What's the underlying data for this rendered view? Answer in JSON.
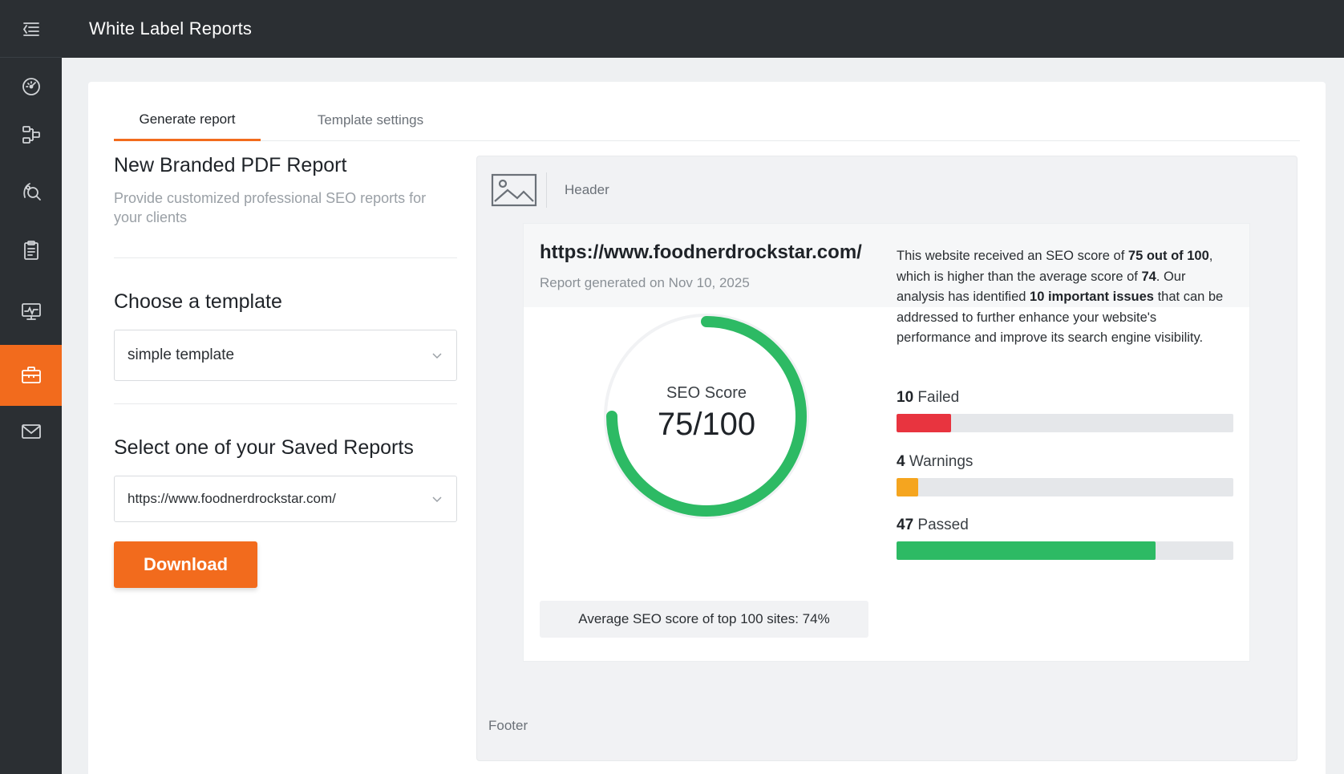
{
  "topbar": {
    "title": "White Label Reports"
  },
  "colors": {
    "accent": "#f26b1d",
    "sidebar_bg": "#2b2f33",
    "failed": "#e8343f",
    "warning": "#f5a51f",
    "passed": "#2dba64"
  },
  "sidebar": {
    "items": [
      {
        "icon": "menu-icon"
      },
      {
        "icon": "dashboard-gauge-icon"
      },
      {
        "icon": "sitemap-icon"
      },
      {
        "icon": "keyword-research-icon"
      },
      {
        "icon": "clipboard-icon"
      },
      {
        "icon": "monitor-icon"
      },
      {
        "icon": "briefcase-icon",
        "active": true
      },
      {
        "icon": "envelope-icon"
      }
    ]
  },
  "tabs": [
    {
      "label": "Generate report",
      "active": true
    },
    {
      "label": "Template settings",
      "active": false
    }
  ],
  "left": {
    "title": "New Branded PDF Report",
    "subtitle": "Provide customized professional SEO reports for your clients",
    "template_heading": "Choose a template",
    "template_value": "simple template",
    "saved_heading": "Select one of your Saved Reports",
    "saved_value": "https://www.foodnerdrockstar.com/",
    "download_label": "Download"
  },
  "preview": {
    "header_label": "Header",
    "footer_label": "Footer",
    "report": {
      "url": "https://www.foodnerdrockstar.com/",
      "date": "Report generated on Nov 10, 2025",
      "score_label": "SEO Score",
      "score_value": "75/100",
      "score_fraction": 0.75,
      "avg_text": "Average SEO score of top 100 sites: 74%",
      "summary": {
        "p1": "This website received an SEO score of ",
        "b1": "75 out of 100",
        "p2": ", which is higher than the average score of ",
        "b2": "74",
        "p3": ". Our analysis has identified ",
        "b3": "10 important issues",
        "p4": " that can be addressed to further enhance your website's performance and improve its search engine visibility."
      },
      "stats": [
        {
          "count": "10",
          "label": "Failed",
          "fraction": 0.163
        },
        {
          "count": "4",
          "label": "Warnings",
          "fraction": 0.065
        },
        {
          "count": "47",
          "label": "Passed",
          "fraction": 0.77
        }
      ]
    }
  }
}
